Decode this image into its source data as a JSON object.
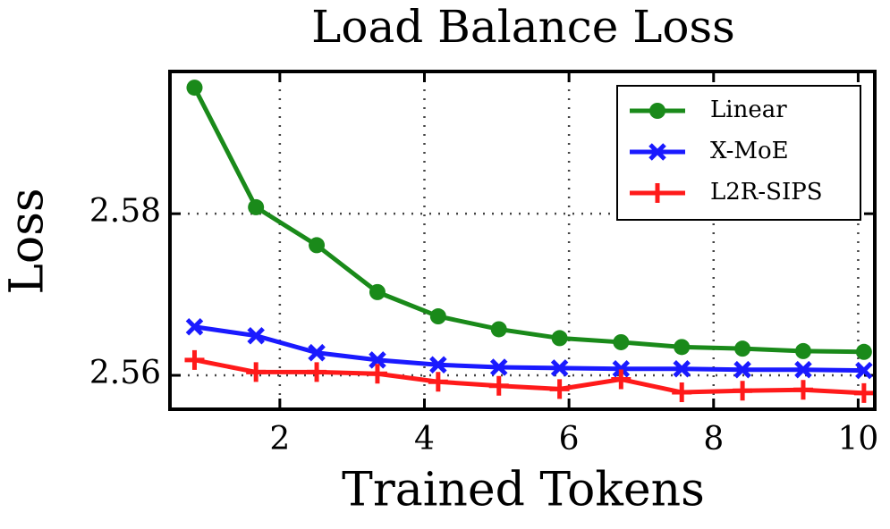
{
  "chart_data": {
    "type": "line",
    "title": "Load Balance Loss",
    "x_label": "Trained Tokens",
    "y_label": "Loss",
    "x": [
      0.82,
      1.67,
      2.51,
      3.35,
      4.19,
      5.03,
      5.87,
      6.72,
      7.56,
      8.4,
      9.24,
      10.08
    ],
    "series": [
      {
        "name": "Linear",
        "color": "#1a8a1a",
        "marker": "circle",
        "values": [
          2.5956,
          2.5808,
          2.5761,
          2.5703,
          2.5673,
          2.5657,
          2.5646,
          2.5641,
          2.5635,
          2.5633,
          2.563,
          2.5629
        ]
      },
      {
        "name": "X-MoE",
        "color": "#1a1aff",
        "marker": "x",
        "values": [
          2.566,
          2.5649,
          2.5628,
          2.5619,
          2.5613,
          2.561,
          2.5609,
          2.5608,
          2.5608,
          2.5607,
          2.5607,
          2.5606
        ]
      },
      {
        "name": "L2R-SIPS",
        "color": "#ff1a1a",
        "marker": "plus",
        "values": [
          2.5619,
          2.5604,
          2.5604,
          2.5602,
          2.5592,
          2.5587,
          2.5583,
          2.5595,
          2.5579,
          2.5581,
          2.5582,
          2.5578
        ]
      }
    ],
    "xlim": [
      0.48,
      10.23
    ],
    "ylim": [
      2.5558,
      2.5976
    ],
    "xticks": [
      2,
      4,
      6,
      8,
      10
    ],
    "yticks": [
      2.56,
      2.58
    ],
    "grid": true,
    "legend": "upper right"
  }
}
